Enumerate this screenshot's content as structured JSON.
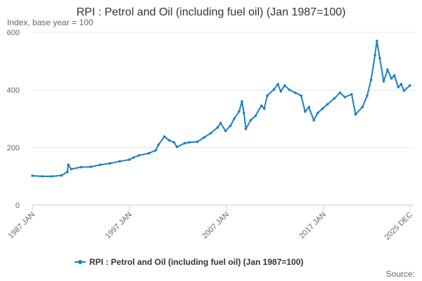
{
  "chart_data": {
    "type": "line",
    "title": "RPI : Petrol and Oil (including fuel oil) (Jan 1987=100)",
    "subtitle": "Index, base year = 100",
    "source": "Source:",
    "x": [
      1987.0,
      1988.0,
      1989.0,
      1990.0,
      1990.6,
      1990.7,
      1991.0,
      1992.0,
      1993.0,
      1994.0,
      1995.0,
      1996.0,
      1997.0,
      1997.4,
      1998.0,
      1999.0,
      1999.7,
      2000.0,
      2000.6,
      2001.1,
      2001.6,
      2001.9,
      2002.7,
      2003.2,
      2004.0,
      2004.7,
      2005.4,
      2006.1,
      2006.4,
      2006.9,
      2007.4,
      2007.8,
      2008.3,
      2008.6,
      2008.8,
      2009.0,
      2009.5,
      2010.0,
      2010.6,
      2010.9,
      2011.2,
      2011.9,
      2012.3,
      2012.6,
      2013.0,
      2013.5,
      2014.1,
      2014.7,
      2015.1,
      2015.5,
      2016.0,
      2016.4,
      2016.9,
      2017.4,
      2018.1,
      2018.7,
      2019.2,
      2019.9,
      2020.3,
      2021.0,
      2021.5,
      2021.9,
      2022.3,
      2022.5,
      2022.8,
      2023.2,
      2023.6,
      2024.0,
      2024.3,
      2024.7,
      2025.0,
      2025.3,
      2025.9
    ],
    "series": [
      {
        "name": "RPI : Petrol and Oil (including fuel oil) (Jan 1987=100)",
        "color": "#1a80c0",
        "values": [
          102,
          100,
          100,
          103,
          115,
          140,
          125,
          132,
          133,
          140,
          145,
          152,
          158,
          165,
          173,
          180,
          190,
          210,
          238,
          225,
          218,
          202,
          215,
          218,
          220,
          235,
          250,
          270,
          285,
          258,
          275,
          300,
          325,
          360,
          320,
          265,
          295,
          310,
          345,
          335,
          380,
          402,
          420,
          395,
          415,
          400,
          390,
          380,
          325,
          340,
          295,
          320,
          335,
          350,
          370,
          390,
          375,
          385,
          315,
          340,
          380,
          435,
          520,
          570,
          510,
          430,
          470,
          440,
          450,
          410,
          420,
          398,
          415
        ]
      }
    ],
    "xlim": [
      1987.0,
      2025.917
    ],
    "xticks": [
      {
        "value": 1987.0,
        "label": "1987 JAN"
      },
      {
        "value": 1997.0,
        "label": "1997 JAN"
      },
      {
        "value": 2007.0,
        "label": "2007 JAN"
      },
      {
        "value": 2017.0,
        "label": "2017 JAN"
      },
      {
        "value": 2025.917,
        "label": "2025 DEC"
      }
    ],
    "ylim": [
      0,
      600
    ],
    "yticks": [
      0,
      200,
      400,
      600
    ],
    "grid": true
  }
}
